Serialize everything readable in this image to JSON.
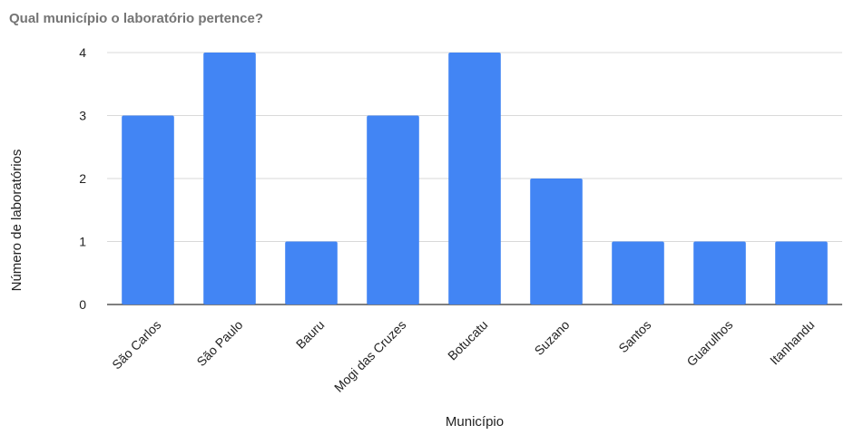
{
  "chart_data": {
    "type": "bar",
    "title": "Qual município o laboratório pertence?",
    "xlabel": "Município",
    "ylabel": "Número de laboratórios",
    "categories": [
      "São Carlos",
      "São Paulo",
      "Bauru",
      "Mogi das Cruzes",
      "Botucatu",
      "Suzano",
      "Santos",
      "Guarulhos",
      "Itanhandu"
    ],
    "values": [
      3,
      4,
      1,
      3,
      4,
      2,
      1,
      1,
      1
    ],
    "ylim": [
      0,
      4
    ],
    "yticks": [
      "0",
      "1",
      "2",
      "3",
      "4"
    ],
    "grid": true,
    "bar_color": "#4285f4",
    "grid_color": "#d9d9d9",
    "title_color": "#757575"
  }
}
